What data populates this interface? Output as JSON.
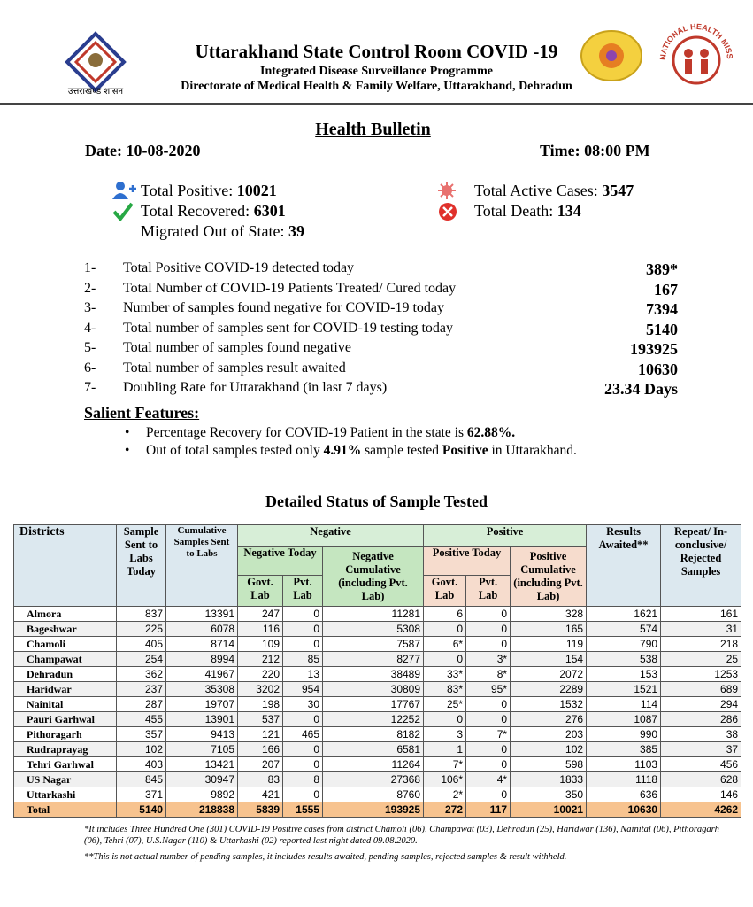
{
  "header": {
    "title": "Uttarakhand State Control Room COVID -19",
    "subtitle": "Integrated Disease Surveillance Programme",
    "directorate": "Directorate of Medical Health & Family Welfare, Uttarakhand, Dehradun",
    "logo_caption": "उत्तराखण्ड शासन",
    "nhm_text": "NATIONAL HEALTH MISSION"
  },
  "bulletin": {
    "title": "Health Bulletin",
    "date": "Date: 10-08-2020",
    "time": "Time: 08:00 PM"
  },
  "summary": {
    "total_positive": {
      "label": "Total Positive:",
      "value": 10021
    },
    "total_recovered": {
      "label": "Total Recovered:",
      "value": 6301
    },
    "migrated": {
      "label": "Migrated Out of State:",
      "value": 39
    },
    "active": {
      "label": "Total Active Cases:",
      "value": 3547
    },
    "death": {
      "label": "Total Death:",
      "value": 134
    }
  },
  "list": [
    {
      "num": "1-",
      "text": "Total Positive COVID-19 detected today",
      "value": "389*"
    },
    {
      "num": "2-",
      "text": "Total Number of COVID-19 Patients Treated/ Cured today",
      "value": 167
    },
    {
      "num": "3-",
      "text": "Number of samples found negative for COVID-19 today",
      "value": 7394
    },
    {
      "num": "4-",
      "text": "Total number of samples sent for COVID-19 testing today",
      "value": 5140
    },
    {
      "num": "5-",
      "text": "Total number of samples found negative",
      "value": 193925
    },
    {
      "num": "6-",
      "text": "Total number of samples result awaited",
      "value": 10630
    },
    {
      "num": "7-",
      "text": "Doubling Rate for Uttarakhand (in last 7 days)",
      "value": "23.34 Days"
    }
  ],
  "salient": {
    "title": "Salient Features:",
    "items": [
      [
        "Percentage Recovery for COVID-19 Patient in the state is ",
        "62.88%."
      ],
      [
        "Out of total samples tested only ",
        "4.91%",
        " sample tested ",
        "Positive",
        " in Uttarakhand."
      ]
    ]
  },
  "table": {
    "title": "Detailed Status of Sample Tested",
    "headers": {
      "districts": "Districts",
      "sent_today": "Sample Sent to Labs Today",
      "cumulative": "Cumulative Samples Sent to Labs",
      "negative": "Negative",
      "positive": "Positive",
      "awaited": "Results Awaited**",
      "repeat": "Repeat/ In-conclusive/ Rejected Samples",
      "negative_today": "Negative Today",
      "negative_cumulative": "Negative Cumulative (including Pvt. Lab)",
      "positive_today": "Positive Today",
      "positive_cumulative": "Positive Cumulative (including Pvt. Lab)",
      "neg_govt": "Govt. Lab",
      "neg_pvt": "Pvt. Lab",
      "pos_govt": "Govt. Lab",
      "pos_pvt": "Pvt. Lab"
    },
    "rows": [
      [
        "Almora",
        837,
        13391,
        247,
        0,
        11281,
        6,
        0,
        328,
        1621,
        161
      ],
      [
        "Bageshwar",
        225,
        6078,
        116,
        0,
        5308,
        0,
        0,
        165,
        574,
        31
      ],
      [
        "Chamoli",
        405,
        8714,
        109,
        0,
        7587,
        "6*",
        0,
        119,
        790,
        218
      ],
      [
        "Champawat",
        254,
        8994,
        212,
        85,
        8277,
        0,
        "3*",
        154,
        538,
        25
      ],
      [
        "Dehradun",
        362,
        41967,
        220,
        13,
        38489,
        "33*",
        "8*",
        2072,
        153,
        1253
      ],
      [
        "Haridwar",
        237,
        35308,
        3202,
        954,
        30809,
        "83*",
        "95*",
        2289,
        1521,
        689
      ],
      [
        "Nainital",
        287,
        19707,
        198,
        30,
        17767,
        "25*",
        0,
        1532,
        114,
        294
      ],
      [
        "Pauri Garhwal",
        455,
        13901,
        537,
        0,
        12252,
        0,
        0,
        276,
        1087,
        286
      ],
      [
        "Pithoragarh",
        357,
        9413,
        121,
        465,
        8182,
        3,
        "7*",
        203,
        990,
        38
      ],
      [
        "Rudraprayag",
        102,
        7105,
        166,
        0,
        6581,
        1,
        0,
        102,
        385,
        37
      ],
      [
        "Tehri Garhwal",
        403,
        13421,
        207,
        0,
        11264,
        "7*",
        0,
        598,
        1103,
        456
      ],
      [
        "US Nagar",
        845,
        30947,
        83,
        8,
        27368,
        "106*",
        "4*",
        1833,
        1118,
        628
      ],
      [
        "Uttarkashi",
        371,
        9892,
        421,
        0,
        8760,
        "2*",
        0,
        350,
        636,
        146
      ]
    ],
    "total": [
      "Total",
      5140,
      218838,
      5839,
      1555,
      193925,
      272,
      117,
      10021,
      10630,
      4262
    ]
  },
  "footnotes": [
    "*It includes Three Hundred  One (301) COVID-19 Positive cases from district  Chamoli (06), Champawat (03), Dehradun (25), Haridwar (136), Nainital (06), Pithoragarh (06), Tehri (07), U.S.Nagar (110)  & Uttarkashi (02) reported last night dated  09.08.2020.",
    "**This is not actual number of pending samples, it includes results awaited, pending samples, rejected samples & result withheld."
  ]
}
